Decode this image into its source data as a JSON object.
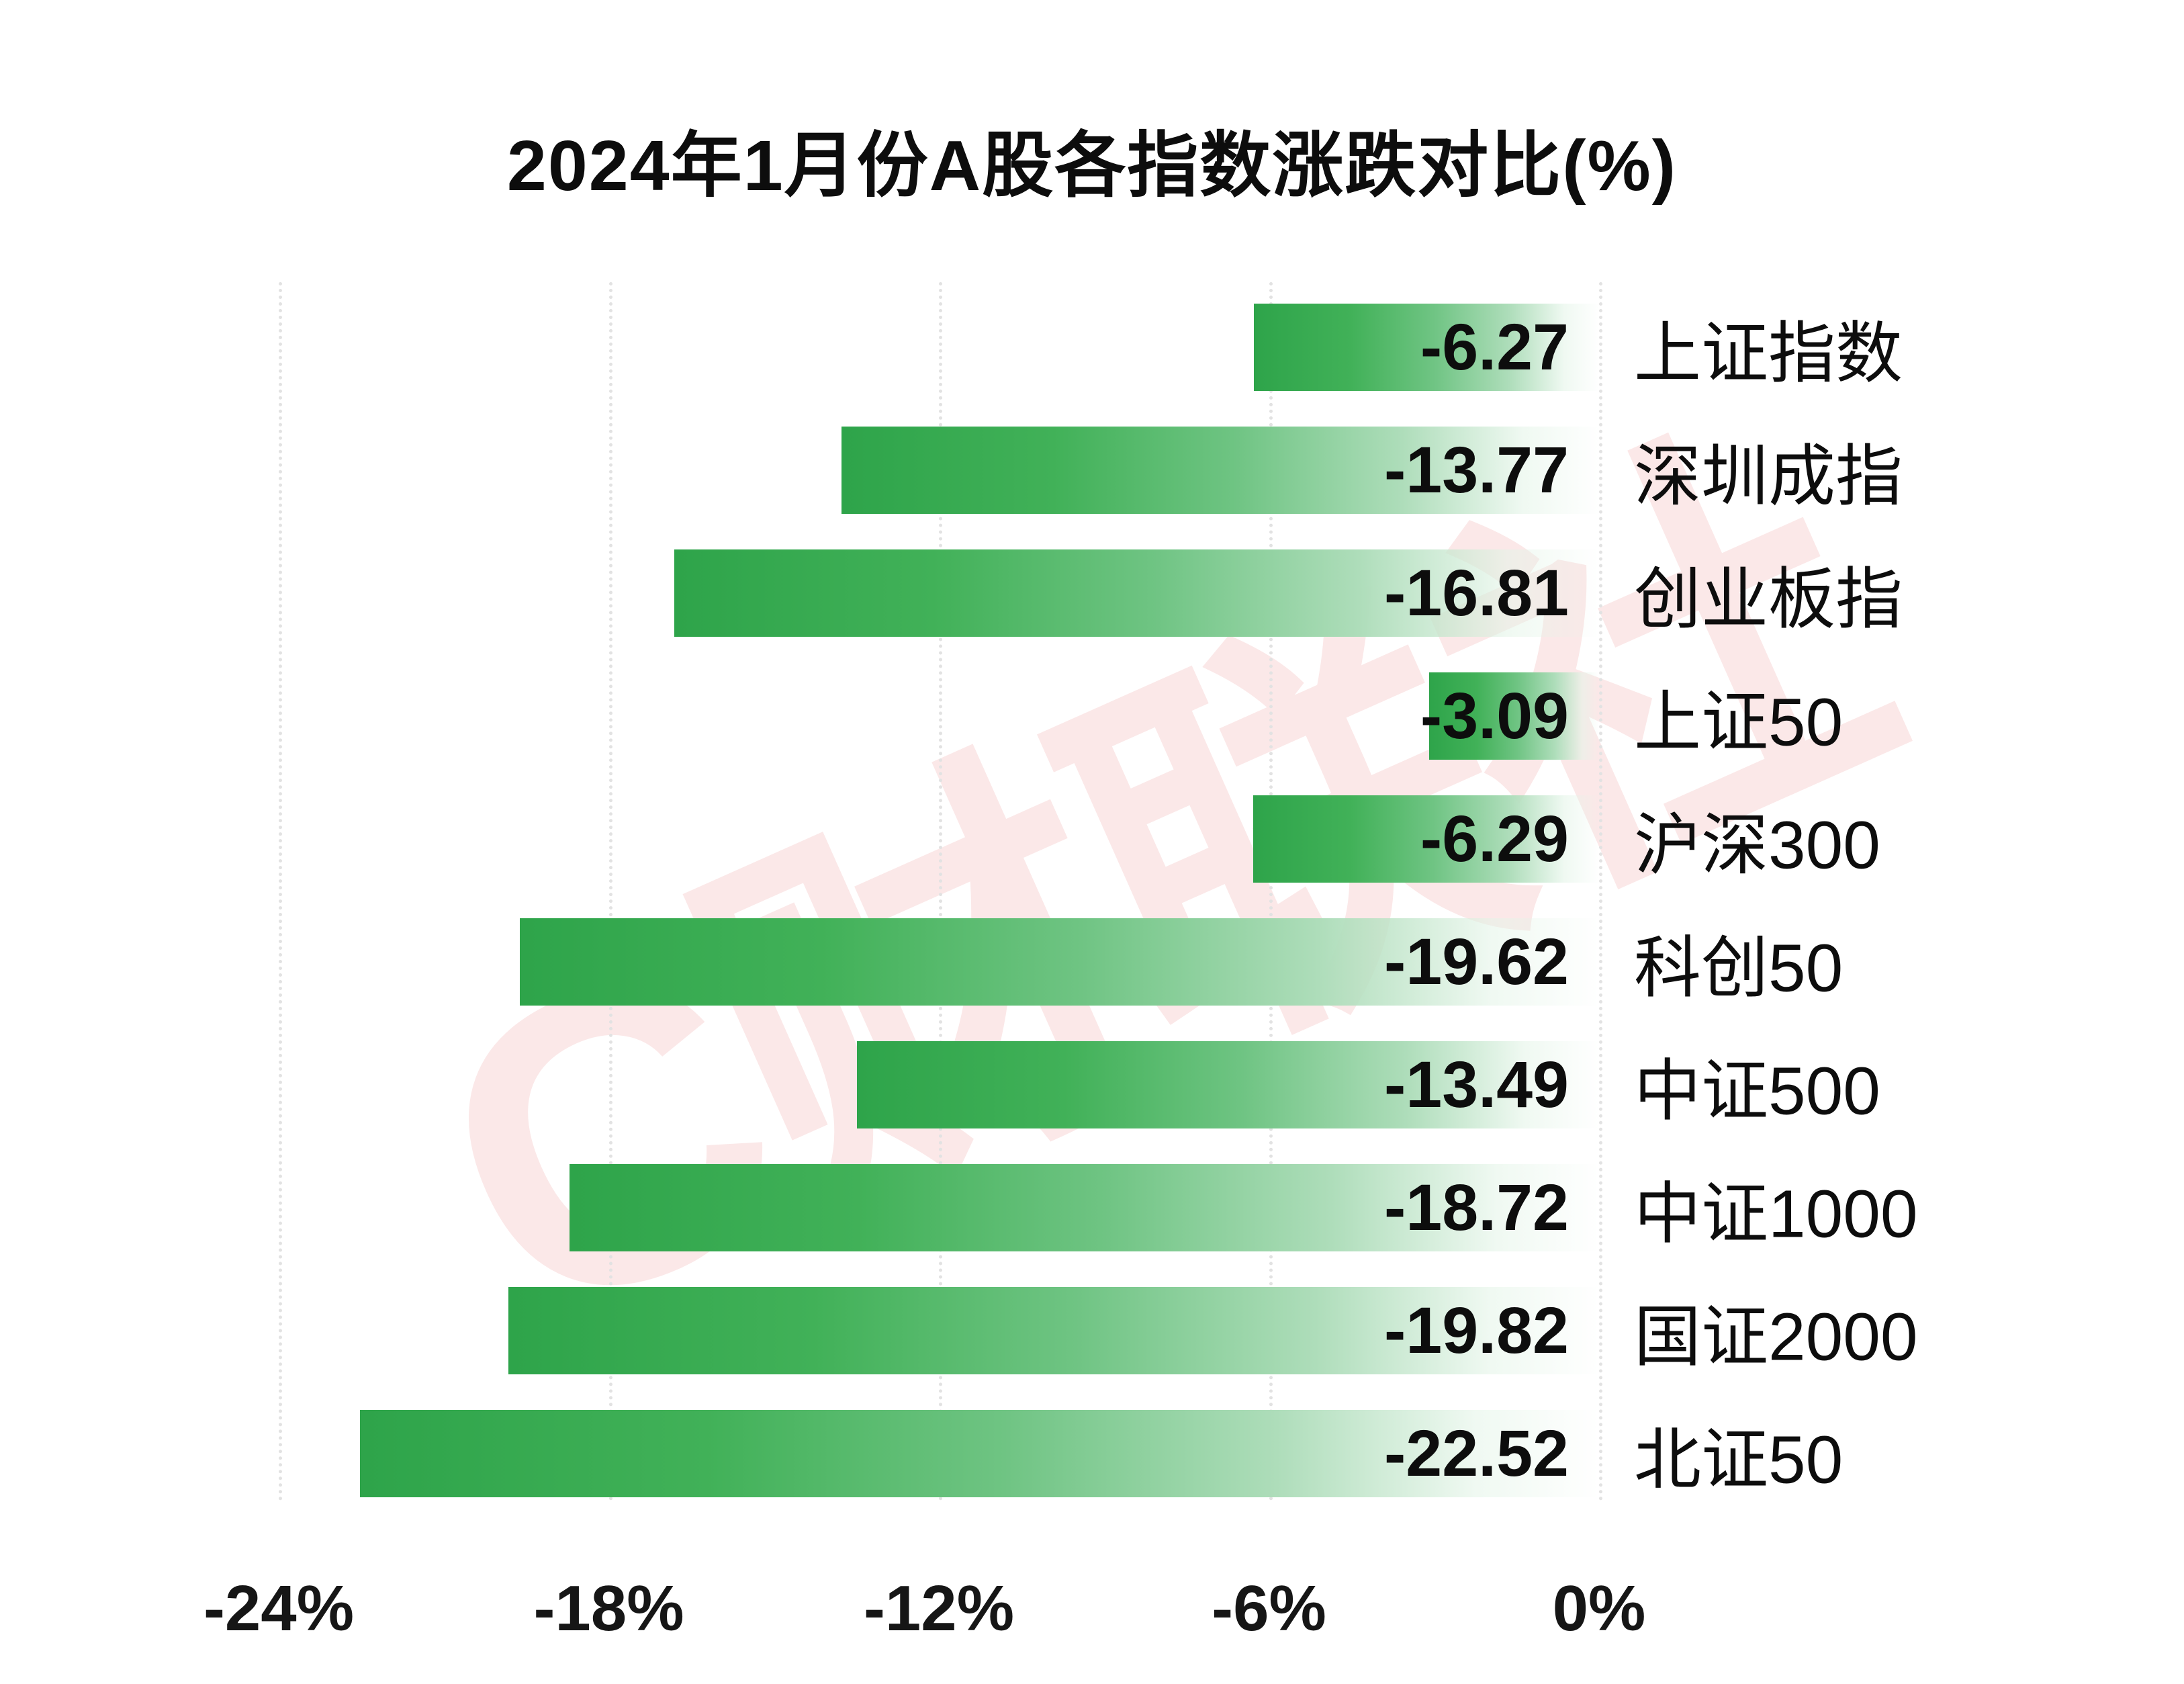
{
  "title": "2024年1月份A股各指数涨跌对比(%)",
  "watermark": "C财联社",
  "colors": {
    "bar_green": "#2ea44a",
    "watermark_pink": "#f5caca",
    "text": "#111111",
    "gridline": "#e2e2e2"
  },
  "chart_data": {
    "type": "bar",
    "orientation": "horizontal",
    "title": "2024年1月份A股各指数涨跌对比(%)",
    "categories": [
      "上证指数",
      "深圳成指",
      "创业板指",
      "上证50",
      "沪深300",
      "科创50",
      "中证500",
      "中证1000",
      "国证2000",
      "北证50"
    ],
    "values": [
      -6.27,
      -13.77,
      -16.81,
      -3.09,
      -6.29,
      -19.62,
      -13.49,
      -18.72,
      -19.82,
      -22.52
    ],
    "value_labels": [
      "-6.27",
      "-13.77",
      "-16.81",
      "-3.09",
      "-6.29",
      "-19.62",
      "-13.49",
      "-18.72",
      "-19.82",
      "-22.52"
    ],
    "xlim": [
      -24,
      0
    ],
    "x_ticks": [
      {
        "label": "-24%",
        "value": -24
      },
      {
        "label": "-18%",
        "value": -18
      },
      {
        "label": "-12%",
        "value": -12
      },
      {
        "label": "-6%",
        "value": -6
      },
      {
        "label": "0%",
        "value": 0
      }
    ],
    "grid": true,
    "legend": false,
    "bars_anchor": "right-at-zero",
    "bar_gradient": "solid green at value end fading to white toward 0%"
  }
}
